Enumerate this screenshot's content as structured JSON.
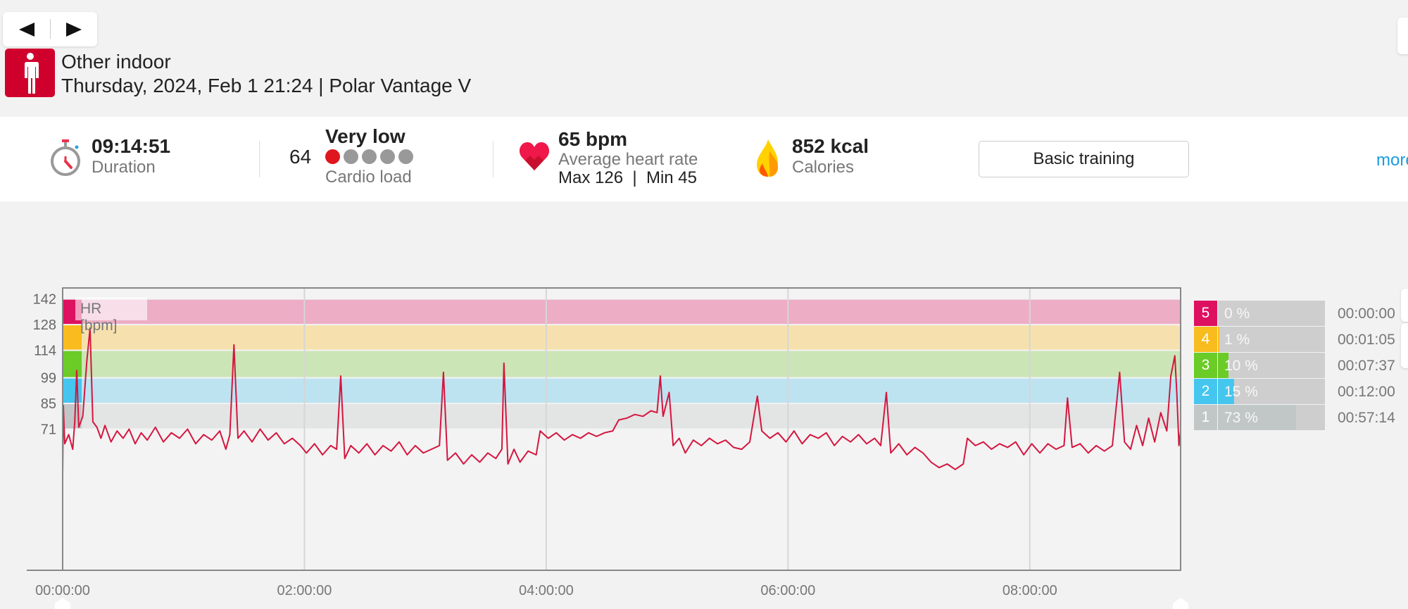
{
  "nav": {
    "prev_icon": "triangle-left",
    "next_icon": "triangle-right"
  },
  "session": {
    "sport": "Other indoor",
    "sport_icon": "person-standing",
    "subtitle": "Thursday, 2024, Feb 1 21:24 | Polar Vantage V"
  },
  "summary": {
    "duration": {
      "value": "09:14:51",
      "label": "Duration"
    },
    "cardio_load": {
      "value": "64",
      "level": "Very low",
      "label": "Cardio load",
      "dots_filled": 1,
      "dots_total": 5
    },
    "heart_rate": {
      "value": "65 bpm",
      "label": "Average heart rate",
      "maxmin": "Max 126  |  Min 45"
    },
    "calories": {
      "value": "852 kcal",
      "label": "Calories"
    },
    "training_button": "Basic training",
    "more_link": "more"
  },
  "zones": [
    {
      "zone": "5",
      "percent_label": "0 %",
      "percent": 0,
      "time": "00:00:00",
      "color": "#de1060"
    },
    {
      "zone": "4",
      "percent_label": "1 %",
      "percent": 1,
      "time": "00:01:05",
      "color": "#f9bc1f"
    },
    {
      "zone": "3",
      "percent_label": "10 %",
      "percent": 10,
      "time": "00:07:37",
      "color": "#6bcb27"
    },
    {
      "zone": "2",
      "percent_label": "15 %",
      "percent": 15,
      "time": "00:12:00",
      "color": "#45c6ef"
    },
    {
      "zone": "1",
      "percent_label": "73 %",
      "percent": 73,
      "time": "00:57:14",
      "color": "#c1c7c7"
    }
  ],
  "chart_data": {
    "type": "line",
    "ylabel": "HR [bpm]",
    "xlabel": "",
    "ylim": [
      -6,
      148
    ],
    "xlim_minutes": [
      0,
      554.85
    ],
    "y_ticks": [
      142,
      128,
      114,
      99,
      85,
      71
    ],
    "x_ticks": [
      {
        "min": 0,
        "label": "00:00:00"
      },
      {
        "min": 120,
        "label": "02:00:00"
      },
      {
        "min": 240,
        "label": "04:00:00"
      },
      {
        "min": 360,
        "label": "06:00:00"
      },
      {
        "min": 480,
        "label": "08:00:00"
      }
    ],
    "zone_bands": [
      {
        "zone": "5",
        "from": 128,
        "to": 142,
        "color": "#ecadc5"
      },
      {
        "zone": "4",
        "from": 114,
        "to": 128,
        "color": "#f6e1ae"
      },
      {
        "zone": "3",
        "from": 99,
        "to": 114,
        "color": "#cbe5b6"
      },
      {
        "zone": "2",
        "from": 85,
        "to": 99,
        "color": "#bde3f1"
      },
      {
        "zone": "1",
        "from": 71,
        "to": 85,
        "color": "#e3e4e4"
      }
    ],
    "grid": true,
    "series": [
      {
        "name": "HR",
        "color": "#d4163f",
        "points": [
          [
            0,
            45
          ],
          [
            0.3,
            84
          ],
          [
            1,
            63
          ],
          [
            3,
            68
          ],
          [
            5,
            60
          ],
          [
            6,
            75
          ],
          [
            7,
            103
          ],
          [
            8,
            72
          ],
          [
            10,
            78
          ],
          [
            12,
            108
          ],
          [
            13.6,
            126
          ],
          [
            15,
            75
          ],
          [
            17,
            72
          ],
          [
            19,
            66
          ],
          [
            21,
            73
          ],
          [
            24,
            64
          ],
          [
            27,
            70
          ],
          [
            30,
            66
          ],
          [
            33,
            71
          ],
          [
            36,
            63
          ],
          [
            39,
            69
          ],
          [
            42,
            65
          ],
          [
            46,
            72
          ],
          [
            50,
            64
          ],
          [
            54,
            69
          ],
          [
            58,
            66
          ],
          [
            62,
            71
          ],
          [
            66,
            63
          ],
          [
            70,
            68
          ],
          [
            74,
            65
          ],
          [
            78,
            70
          ],
          [
            81,
            60
          ],
          [
            83,
            68
          ],
          [
            85,
            117
          ],
          [
            87,
            66
          ],
          [
            90,
            70
          ],
          [
            94,
            64
          ],
          [
            98,
            71
          ],
          [
            102,
            65
          ],
          [
            106,
            69
          ],
          [
            110,
            63
          ],
          [
            114,
            66
          ],
          [
            118,
            62
          ],
          [
            121,
            58
          ],
          [
            125,
            63
          ],
          [
            129,
            57
          ],
          [
            133,
            62
          ],
          [
            136,
            60
          ],
          [
            138,
            100
          ],
          [
            140,
            55
          ],
          [
            143,
            62
          ],
          [
            147,
            58
          ],
          [
            151,
            63
          ],
          [
            155,
            57
          ],
          [
            159,
            62
          ],
          [
            163,
            59
          ],
          [
            167,
            64
          ],
          [
            171,
            57
          ],
          [
            175,
            62
          ],
          [
            179,
            58
          ],
          [
            183,
            60
          ],
          [
            187,
            62
          ],
          [
            189,
            102
          ],
          [
            191,
            54
          ],
          [
            195,
            58
          ],
          [
            199,
            52
          ],
          [
            203,
            57
          ],
          [
            207,
            53
          ],
          [
            211,
            58
          ],
          [
            215,
            55
          ],
          [
            218,
            60
          ],
          [
            219,
            107
          ],
          [
            221,
            52
          ],
          [
            224,
            60
          ],
          [
            227,
            53
          ],
          [
            231,
            59
          ],
          [
            235,
            57
          ],
          [
            237,
            70
          ],
          [
            241,
            66
          ],
          [
            245,
            69
          ],
          [
            249,
            65
          ],
          [
            253,
            68
          ],
          [
            257,
            66
          ],
          [
            261,
            69
          ],
          [
            265,
            67
          ],
          [
            269,
            69
          ],
          [
            273,
            70
          ],
          [
            276,
            76
          ],
          [
            280,
            77
          ],
          [
            284,
            79
          ],
          [
            288,
            78
          ],
          [
            292,
            81
          ],
          [
            295,
            80
          ],
          [
            296.6,
            100
          ],
          [
            298,
            78
          ],
          [
            301,
            91
          ],
          [
            303,
            62
          ],
          [
            306,
            66
          ],
          [
            309,
            58
          ],
          [
            313,
            65
          ],
          [
            317,
            62
          ],
          [
            321,
            66
          ],
          [
            325,
            63
          ],
          [
            329,
            65
          ],
          [
            333,
            61
          ],
          [
            337,
            60
          ],
          [
            341,
            64
          ],
          [
            344.8,
            89
          ],
          [
            347,
            70
          ],
          [
            351,
            66
          ],
          [
            355,
            69
          ],
          [
            359,
            64
          ],
          [
            363,
            70
          ],
          [
            367,
            63
          ],
          [
            371,
            68
          ],
          [
            375,
            66
          ],
          [
            379,
            69
          ],
          [
            383,
            62
          ],
          [
            387,
            67
          ],
          [
            391,
            64
          ],
          [
            395,
            68
          ],
          [
            399,
            63
          ],
          [
            403,
            66
          ],
          [
            406,
            62
          ],
          [
            408.8,
            91
          ],
          [
            411,
            58
          ],
          [
            415,
            63
          ],
          [
            419,
            57
          ],
          [
            423,
            61
          ],
          [
            427,
            58
          ],
          [
            431,
            53
          ],
          [
            435,
            50
          ],
          [
            439,
            52
          ],
          [
            443,
            49
          ],
          [
            447,
            52
          ],
          [
            449,
            66
          ],
          [
            453,
            62
          ],
          [
            457,
            64
          ],
          [
            461,
            60
          ],
          [
            465,
            63
          ],
          [
            469,
            61
          ],
          [
            473,
            64
          ],
          [
            477,
            57
          ],
          [
            481,
            63
          ],
          [
            485,
            58
          ],
          [
            489,
            63
          ],
          [
            493,
            60
          ],
          [
            497,
            62
          ],
          [
            498.7,
            88
          ],
          [
            501,
            61
          ],
          [
            505,
            63
          ],
          [
            509,
            58
          ],
          [
            513,
            62
          ],
          [
            517,
            59
          ],
          [
            521,
            62
          ],
          [
            524.6,
            102
          ],
          [
            527,
            64
          ],
          [
            530,
            60
          ],
          [
            533,
            73
          ],
          [
            536,
            62
          ],
          [
            539,
            77
          ],
          [
            542,
            64
          ],
          [
            545,
            80
          ],
          [
            548,
            70
          ],
          [
            550,
            100
          ],
          [
            552,
            111
          ],
          [
            553,
            90
          ],
          [
            554,
            62
          ],
          [
            554.85,
            70
          ]
        ]
      }
    ]
  }
}
